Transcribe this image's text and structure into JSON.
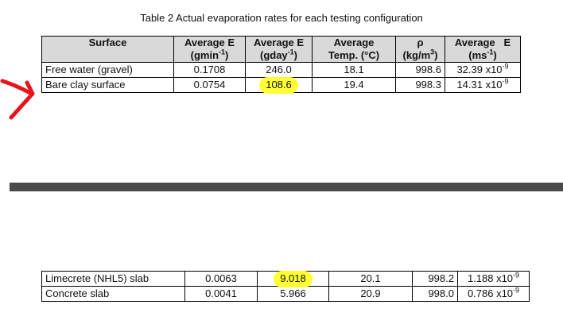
{
  "caption": "Table 2 Actual evaporation rates for each testing configuration",
  "columns": [
    {
      "main": "Surface",
      "sub": "",
      "sup": "",
      "close": ""
    },
    {
      "main": "Average E",
      "sub": "(gmin",
      "sup": "-1",
      "close": ")"
    },
    {
      "main": "Average E",
      "sub": "(gday",
      "sup": "-1",
      "close": ")"
    },
    {
      "main": "Average",
      "sub": "Temp. (°C)",
      "sup": "",
      "close": ""
    },
    {
      "main": "ρ",
      "sub": "(kg/m",
      "sup": "3",
      "close": ")"
    },
    {
      "main": "Average   E",
      "sub": "(ms",
      "sup": "-1",
      "close": ")"
    }
  ],
  "rows_top": [
    {
      "surface": "Free water (gravel)",
      "e_gmin": "0.1708",
      "e_gday": "246.0",
      "temp": "18.1",
      "rho": "998.6",
      "e_ms": "32.39 x10",
      "e_ms_exp": "-9"
    },
    {
      "surface": "Bare clay surface",
      "e_gmin": "0.0754",
      "e_gday": "108.6",
      "temp": "19.4",
      "rho": "998.3",
      "e_ms": "14.31 x10",
      "e_ms_exp": "-9"
    }
  ],
  "rows_bottom": [
    {
      "surface": "Limecrete (NHL5) slab",
      "e_gmin": "0.0063",
      "e_gday": "9.018",
      "temp": "20.1",
      "rho": "998.2",
      "e_ms": "1.188 x10",
      "e_ms_exp": "-9"
    },
    {
      "surface": "Concrete slab",
      "e_gmin": "0.0041",
      "e_gday": "5.966",
      "temp": "20.9",
      "rho": "998.0",
      "e_ms": "0.786 x10",
      "e_ms_exp": "-9"
    }
  ],
  "colors": {
    "highlight": "#ffff33",
    "arrow": "#e8141b",
    "header_bg": "#d9d9d9",
    "divider": "#4a4a4a"
  },
  "icons": {
    "annotation": "red-arrow-icon"
  }
}
